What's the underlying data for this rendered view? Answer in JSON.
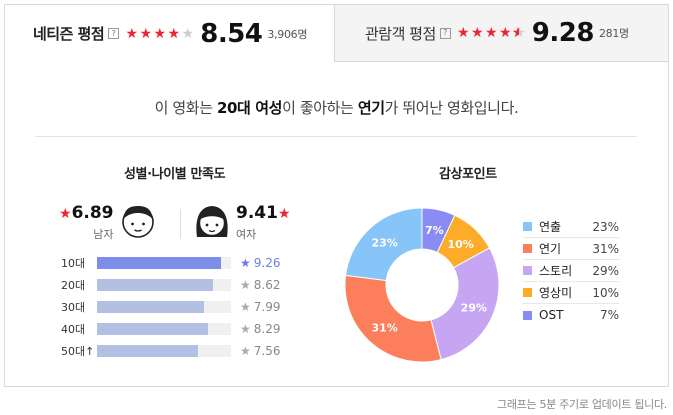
{
  "netizen": {
    "label": "네티즌 평점",
    "stars": 4,
    "score": "8.54",
    "count": "3,906명"
  },
  "audience": {
    "label": "관람객 평점",
    "stars": 4.5,
    "score": "9.28",
    "count": "281명"
  },
  "help_glyph": "?",
  "summary": {
    "pre": "이 영화는 ",
    "group": "20대 여성",
    "mid": "이 좋아하는 ",
    "point": "연기",
    "post": "가 뛰어난 영화입니다."
  },
  "demographics": {
    "title": "성별·나이별 만족도",
    "male": {
      "score": "6.89",
      "label": "남자"
    },
    "female": {
      "score": "9.41",
      "label": "여자"
    },
    "ages": [
      {
        "label": "10대",
        "value": "9.26",
        "fraction": 0.926,
        "top": true
      },
      {
        "label": "20대",
        "value": "8.62",
        "fraction": 0.862,
        "top": false
      },
      {
        "label": "30대",
        "value": "7.99",
        "fraction": 0.799,
        "top": false
      },
      {
        "label": "40대",
        "value": "8.29",
        "fraction": 0.829,
        "top": false
      },
      {
        "label": "50대↑",
        "value": "7.56",
        "fraction": 0.756,
        "top": false
      }
    ]
  },
  "points": {
    "title": "감상포인트",
    "items": [
      {
        "label": "연출",
        "value": "23%",
        "pct": 23,
        "color": "#87c4f8"
      },
      {
        "label": "연기",
        "value": "31%",
        "pct": 31,
        "color": "#fd7e5a"
      },
      {
        "label": "스토리",
        "value": "29%",
        "pct": 29,
        "color": "#c6a6f3"
      },
      {
        "label": "영상미",
        "value": "10%",
        "pct": 10,
        "color": "#fdac29"
      },
      {
        "label": "OST",
        "value": "7%",
        "pct": 7,
        "color": "#8a8cf4"
      }
    ]
  },
  "footnote": "그래프는 5분 주기로 업데이트 됩니다."
}
